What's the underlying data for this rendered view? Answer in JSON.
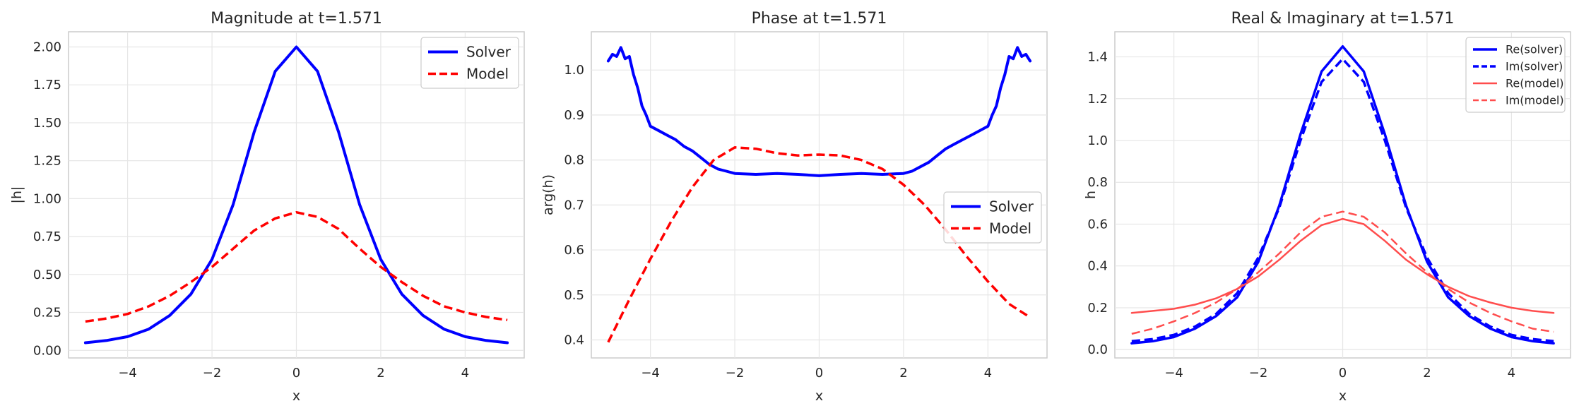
{
  "colors": {
    "solver": "#0000ff",
    "model": "#ff0000",
    "model_light": "#ff4d4d",
    "grid": "#e6e6e6",
    "spine": "#cccccc",
    "text": "#262626"
  },
  "chart_data": [
    {
      "type": "line",
      "title": "Magnitude at t=1.571",
      "xlabel": "x",
      "ylabel": "|h|",
      "xlim": [
        -5.4,
        5.4
      ],
      "ylim": [
        -0.05,
        2.1
      ],
      "xticks": [
        -4,
        -2,
        0,
        2,
        4
      ],
      "xtick_labels": [
        "−4",
        "−2",
        "0",
        "2",
        "4"
      ],
      "yticks": [
        0.0,
        0.25,
        0.5,
        0.75,
        1.0,
        1.25,
        1.5,
        1.75,
        2.0
      ],
      "ytick_labels": [
        "0.00",
        "0.25",
        "0.50",
        "0.75",
        "1.00",
        "1.25",
        "1.50",
        "1.75",
        "2.00"
      ],
      "grid": true,
      "legend_position": "upper right",
      "x": [
        -5,
        -4.5,
        -4,
        -3.5,
        -3,
        -2.5,
        -2,
        -1.5,
        -1,
        -0.5,
        0,
        0.5,
        1,
        1.5,
        2,
        2.5,
        3,
        3.5,
        4,
        4.5,
        5
      ],
      "series": [
        {
          "name": "Solver",
          "color": "#0000ff",
          "style": "solid",
          "width": 4,
          "values": [
            0.05,
            0.065,
            0.09,
            0.14,
            0.23,
            0.37,
            0.6,
            0.96,
            1.44,
            1.84,
            2.0,
            1.84,
            1.44,
            0.96,
            0.6,
            0.37,
            0.23,
            0.14,
            0.09,
            0.065,
            0.05
          ]
        },
        {
          "name": "Model",
          "color": "#ff0000",
          "style": "dashed",
          "width": 3.5,
          "values": [
            0.19,
            0.21,
            0.24,
            0.29,
            0.36,
            0.45,
            0.55,
            0.67,
            0.79,
            0.87,
            0.91,
            0.88,
            0.8,
            0.67,
            0.55,
            0.45,
            0.36,
            0.29,
            0.25,
            0.22,
            0.2
          ]
        }
      ]
    },
    {
      "type": "line",
      "title": "Phase at t=1.571",
      "xlabel": "x",
      "ylabel": "arg(h)",
      "xlim": [
        -5.4,
        5.4
      ],
      "ylim": [
        0.36,
        1.085
      ],
      "xticks": [
        -4,
        -2,
        0,
        2,
        4
      ],
      "xtick_labels": [
        "−4",
        "−2",
        "0",
        "2",
        "4"
      ],
      "yticks": [
        0.4,
        0.5,
        0.6,
        0.7,
        0.8,
        0.9,
        1.0
      ],
      "ytick_labels": [
        "0.4",
        "0.5",
        "0.6",
        "0.7",
        "0.8",
        "0.9",
        "1.0"
      ],
      "grid": true,
      "legend_position": "center right",
      "series": [
        {
          "name": "Solver",
          "color": "#0000ff",
          "style": "solid",
          "width": 4,
          "x": [
            -5,
            -4.9,
            -4.8,
            -4.7,
            -4.6,
            -4.5,
            -4.4,
            -4.3,
            -4.2,
            -4.1,
            -4,
            -3.8,
            -3.6,
            -3.4,
            -3.2,
            -3,
            -2.8,
            -2.6,
            -2.4,
            -2.2,
            -2,
            -1.5,
            -1,
            -0.5,
            0,
            0.5,
            1,
            1.5,
            2,
            2.2,
            2.4,
            2.6,
            2.8,
            3,
            3.2,
            3.4,
            3.6,
            3.8,
            4,
            4.1,
            4.2,
            4.3,
            4.4,
            4.5,
            4.6,
            4.7,
            4.8,
            4.9,
            5
          ],
          "values": [
            1.02,
            1.035,
            1.03,
            1.05,
            1.025,
            1.03,
            0.99,
            0.96,
            0.92,
            0.9,
            0.875,
            0.865,
            0.855,
            0.845,
            0.83,
            0.82,
            0.805,
            0.79,
            0.78,
            0.775,
            0.77,
            0.768,
            0.77,
            0.768,
            0.765,
            0.768,
            0.77,
            0.768,
            0.77,
            0.775,
            0.785,
            0.795,
            0.81,
            0.825,
            0.835,
            0.845,
            0.855,
            0.865,
            0.875,
            0.9,
            0.92,
            0.96,
            0.99,
            1.03,
            1.025,
            1.05,
            1.03,
            1.035,
            1.02
          ]
        },
        {
          "name": "Model",
          "color": "#ff0000",
          "style": "dashed",
          "width": 3.5,
          "x": [
            -5,
            -4.5,
            -4,
            -3.5,
            -3,
            -2.5,
            -2,
            -1.5,
            -1,
            -0.5,
            0,
            0.5,
            1,
            1.5,
            2,
            2.5,
            3,
            3.5,
            4,
            4.5,
            5
          ],
          "values": [
            0.395,
            0.49,
            0.58,
            0.665,
            0.74,
            0.8,
            0.828,
            0.825,
            0.815,
            0.81,
            0.812,
            0.81,
            0.8,
            0.78,
            0.745,
            0.7,
            0.645,
            0.585,
            0.53,
            0.48,
            0.45
          ]
        }
      ]
    },
    {
      "type": "line",
      "title": "Real & Imaginary at t=1.571",
      "xlabel": "x",
      "ylabel": "h",
      "xlim": [
        -5.4,
        5.4
      ],
      "ylim": [
        -0.04,
        1.52
      ],
      "xticks": [
        -4,
        -2,
        0,
        2,
        4
      ],
      "xtick_labels": [
        "−4",
        "−2",
        "0",
        "2",
        "4"
      ],
      "yticks": [
        0.0,
        0.2,
        0.4,
        0.6,
        0.8,
        1.0,
        1.2,
        1.4
      ],
      "ytick_labels": [
        "0.0",
        "0.2",
        "0.4",
        "0.6",
        "0.8",
        "1.0",
        "1.2",
        "1.4"
      ],
      "grid": true,
      "legend_position": "upper right",
      "x": [
        -5,
        -4.5,
        -4,
        -3.5,
        -3,
        -2.5,
        -2,
        -1.5,
        -1,
        -0.5,
        0,
        0.5,
        1,
        1.5,
        2,
        2.5,
        3,
        3.5,
        4,
        4.5,
        5
      ],
      "series": [
        {
          "name": "Re(solver)",
          "color": "#0000ff",
          "style": "solid",
          "width": 3.5,
          "values": [
            0.03,
            0.04,
            0.06,
            0.1,
            0.16,
            0.25,
            0.42,
            0.69,
            1.03,
            1.33,
            1.45,
            1.33,
            1.03,
            0.69,
            0.42,
            0.25,
            0.16,
            0.1,
            0.06,
            0.04,
            0.03
          ]
        },
        {
          "name": "Im(solver)",
          "color": "#0000ff",
          "style": "dashed",
          "width": 3.5,
          "values": [
            0.04,
            0.05,
            0.07,
            0.11,
            0.17,
            0.27,
            0.44,
            0.68,
            1.0,
            1.28,
            1.39,
            1.28,
            1.0,
            0.68,
            0.44,
            0.27,
            0.17,
            0.11,
            0.07,
            0.05,
            0.04
          ]
        },
        {
          "name": "Re(model)",
          "color": "#ff4d4d",
          "style": "solid",
          "width": 2.5,
          "values": [
            0.175,
            0.185,
            0.195,
            0.215,
            0.245,
            0.29,
            0.35,
            0.43,
            0.52,
            0.595,
            0.625,
            0.6,
            0.52,
            0.43,
            0.36,
            0.3,
            0.255,
            0.225,
            0.2,
            0.185,
            0.175
          ]
        },
        {
          "name": "Im(model)",
          "color": "#ff4d4d",
          "style": "dashed",
          "width": 2.5,
          "values": [
            0.075,
            0.1,
            0.135,
            0.175,
            0.225,
            0.29,
            0.37,
            0.46,
            0.56,
            0.635,
            0.66,
            0.635,
            0.56,
            0.46,
            0.37,
            0.29,
            0.225,
            0.175,
            0.135,
            0.1,
            0.085
          ]
        }
      ]
    }
  ]
}
